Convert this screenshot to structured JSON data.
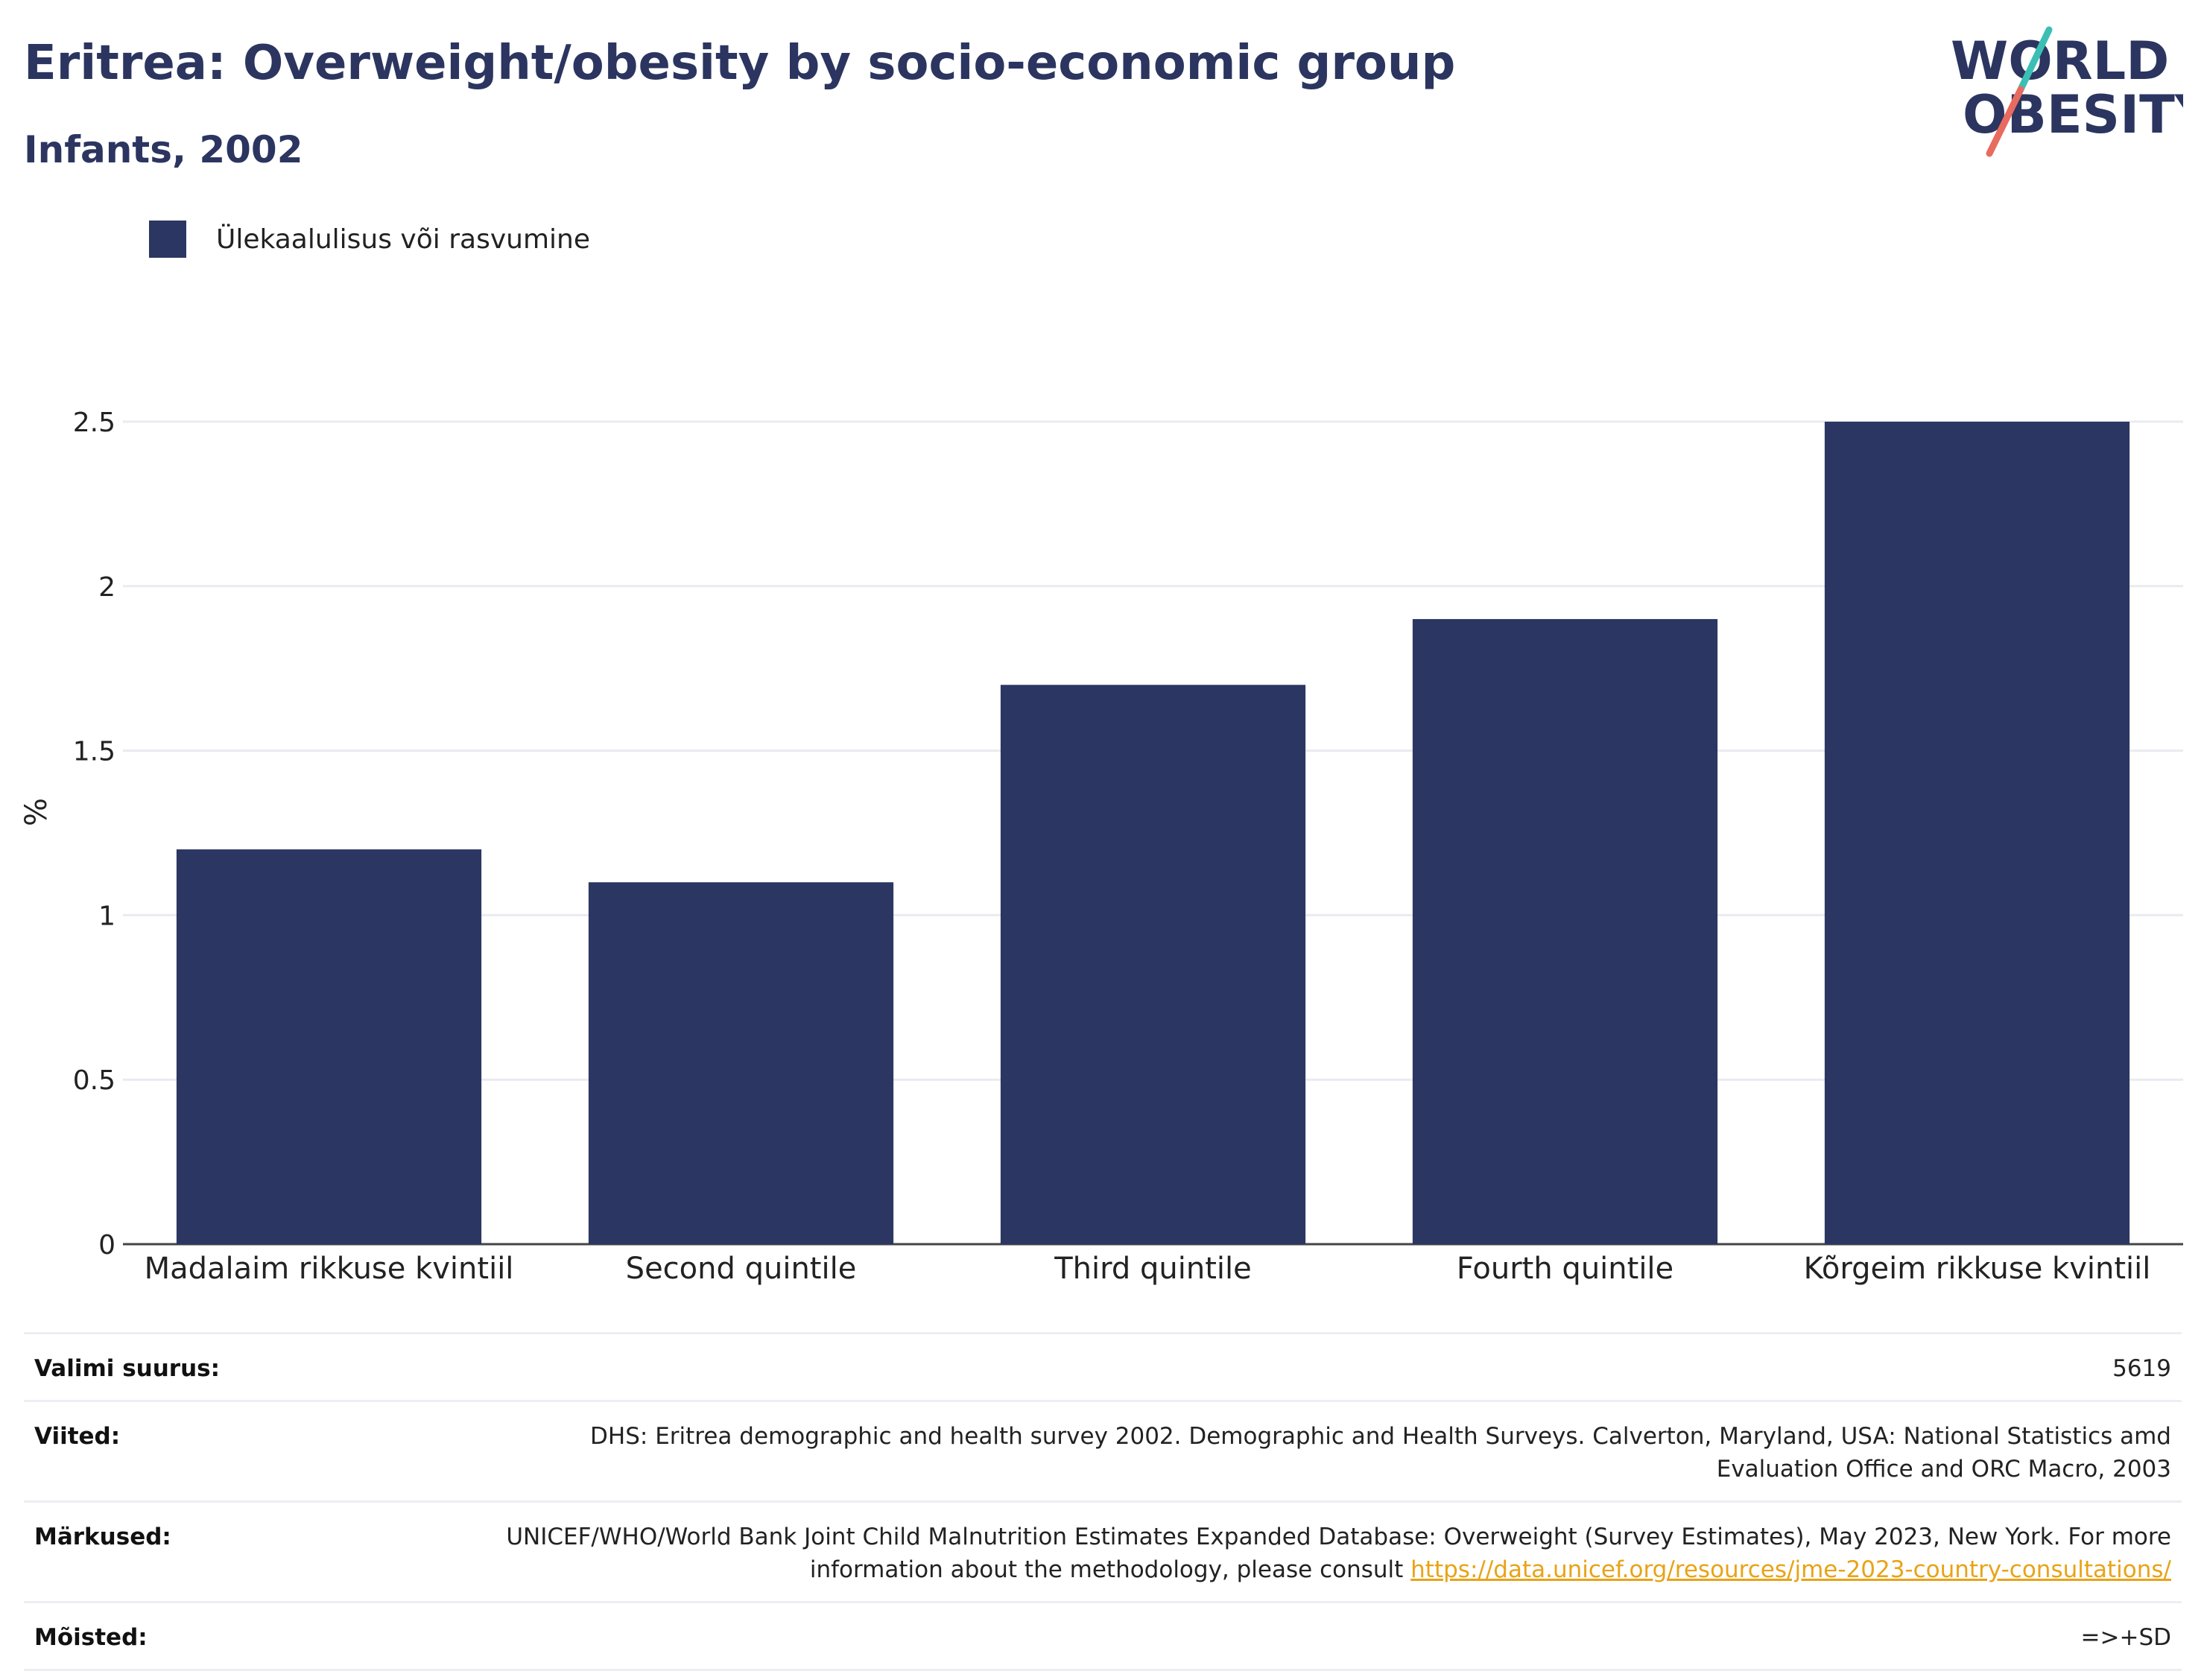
{
  "header": {
    "title": "Eritrea: Overweight/obesity by socio-economic group",
    "subtitle": "Infants, 2002"
  },
  "logo": {
    "line1": "WORLD",
    "line2": "OBESITY",
    "accent_teal": "#3bbfb5",
    "accent_coral": "#e86b5f",
    "text_color": "#2b3560"
  },
  "legend": {
    "label": "Ülekaalulisus või rasvumine",
    "color": "#2b3662"
  },
  "chart_data": {
    "type": "bar",
    "categories": [
      "Madalaim rikkuse kvintiil",
      "Second quintile",
      "Third quintile",
      "Fourth quintile",
      "Kõrgeim rikkuse kvintiil"
    ],
    "series": [
      {
        "name": "Ülekaalulisus või rasvumine",
        "values": [
          1.2,
          1.1,
          1.7,
          1.9,
          2.5
        ],
        "color": "#2b3662"
      }
    ],
    "ylabel": "%",
    "xlabel": "",
    "ylim": [
      0,
      2.5
    ],
    "yticks": [
      0,
      0.5,
      1,
      1.5,
      2,
      2.5
    ],
    "ytick_labels": [
      "0",
      "0.5",
      "1",
      "1.5",
      "2",
      "2.5"
    ],
    "grid": true,
    "legend_position": "top-left"
  },
  "info": {
    "sample_label": "Valimi suurus:",
    "sample_value": "5619",
    "references_label": "Viited:",
    "references_value": "DHS: Eritrea demographic and health survey 2002. Demographic and Health Surveys. Calverton, Maryland, USA: National Statistics amd Evaluation Office and ORC Macro, 2003",
    "notes_label": "Märkused:",
    "notes_value": "UNICEF/WHO/World Bank Joint Child Malnutrition Estimates Expanded Database: Overweight (Survey Estimates), May 2023, New York. For more information about the methodology, please consult",
    "notes_link": "https://data.unicef.org/resources/jme-2023-country-consultations/",
    "definitions_label": "Mõisted:",
    "definitions_value": "=>+SD"
  }
}
